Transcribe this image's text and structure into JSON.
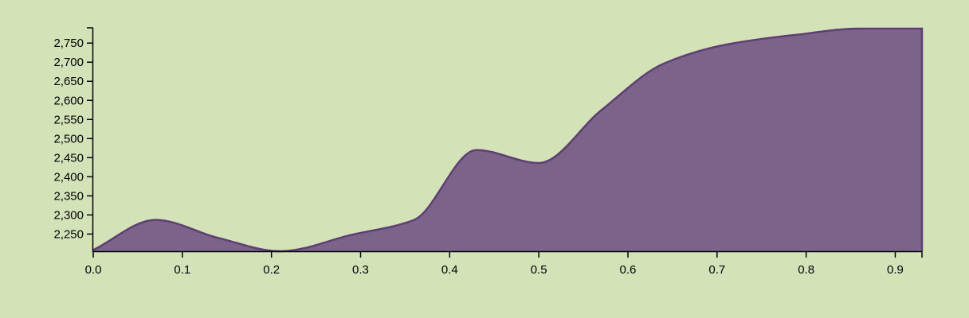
{
  "chart_data": {
    "type": "area",
    "title": "",
    "xlabel": "",
    "ylabel": "",
    "xlim": [
      0,
      0.93
    ],
    "ylim": [
      2205,
      2790
    ],
    "x_ticks": [
      "0.0",
      "0.1",
      "0.2",
      "0.3",
      "0.4",
      "0.5",
      "0.6",
      "0.7",
      "0.8",
      "0.9"
    ],
    "x_tick_values": [
      0,
      0.1,
      0.2,
      0.3,
      0.4,
      0.5,
      0.6,
      0.7,
      0.8,
      0.9
    ],
    "y_ticks": [
      "2,250",
      "2,300",
      "2,350",
      "2,400",
      "2,450",
      "2,500",
      "2,550",
      "2,600",
      "2,650",
      "2,700",
      "2,750"
    ],
    "y_tick_values": [
      2250,
      2300,
      2350,
      2400,
      2450,
      2500,
      2550,
      2600,
      2650,
      2700,
      2750
    ],
    "grid": false,
    "legend": "none",
    "series": [
      {
        "x": [
          0.0,
          0.07,
          0.14,
          0.21,
          0.29,
          0.36,
          0.43,
          0.5,
          0.57,
          0.64,
          0.71,
          0.79,
          0.86,
          0.93
        ],
        "y": [
          2208,
          2287,
          2240,
          2205,
          2248,
          2287,
          2470,
          2436,
          2574,
          2696,
          2746,
          2772,
          2788,
          2788
        ]
      }
    ],
    "colors": {
      "background": "#d4e2b8",
      "fill": "#7b6389",
      "stroke": "#5e3f74",
      "axis": "#000000"
    }
  }
}
